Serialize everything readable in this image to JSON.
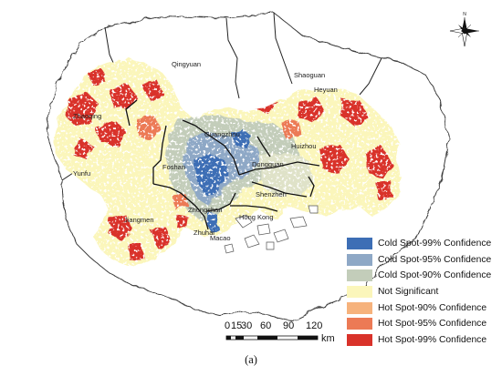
{
  "map": {
    "cities": [
      {
        "name": "Qingyuan"
      },
      {
        "name": "Shaoguan"
      },
      {
        "name": "Heyuan"
      },
      {
        "name": "Zhaoqing"
      },
      {
        "name": "Guangzhou"
      },
      {
        "name": "Huizhou"
      },
      {
        "name": "Yunfu"
      },
      {
        "name": "Foshan"
      },
      {
        "name": "Dongguan"
      },
      {
        "name": "Shenzhen"
      },
      {
        "name": "Hong Kong"
      },
      {
        "name": "Jiangmen"
      },
      {
        "name": "Zhongshan"
      },
      {
        "name": "Zhuhai"
      },
      {
        "name": "Macao"
      }
    ],
    "compass": {
      "north_label": "N"
    }
  },
  "legend": {
    "items": [
      {
        "label": "Cold Spot-99% Confidence",
        "color": "#3d6eb5"
      },
      {
        "label": "Cold Spot-95% Confidence",
        "color": "#8ea8c6"
      },
      {
        "label": "Cold Spot-90% Confidence",
        "color": "#c3cdba"
      },
      {
        "label": "Not Significant",
        "color": "#fbf6bb"
      },
      {
        "label": "Hot Spot-90% Confidence",
        "color": "#f6b27c"
      },
      {
        "label": "Hot Spot-95% Confidence",
        "color": "#ec7a55"
      },
      {
        "label": "Hot Spot-99% Confidence",
        "color": "#d9322a"
      }
    ]
  },
  "scale_bar": {
    "ticks": [
      "0",
      "15",
      "30",
      "60",
      "90",
      "120"
    ],
    "unit": "km"
  },
  "caption": "(a)"
}
